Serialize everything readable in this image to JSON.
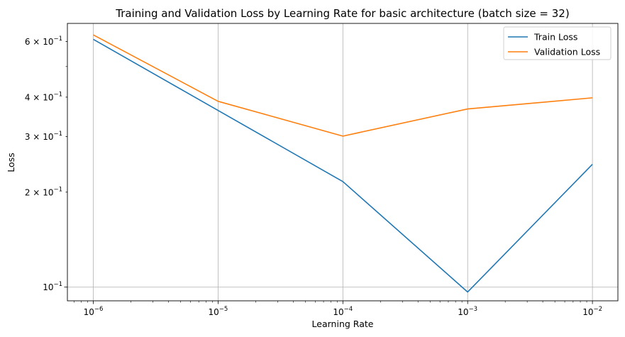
{
  "chart_data": {
    "type": "line",
    "title": "Training and Validation Loss by Learning Rate for basic architecture (batch size = 32)",
    "xlabel": "Learning Rate",
    "ylabel": "Loss",
    "xscale": "log",
    "yscale": "log",
    "x": [
      1e-06,
      1e-05,
      0.0001,
      0.001,
      0.01
    ],
    "xlim": [
      6.2e-07,
      0.016
    ],
    "ylim": [
      0.0905,
      0.685
    ],
    "x_ticks": [
      {
        "value": 1e-06,
        "base": "10",
        "exp": "−6"
      },
      {
        "value": 1e-05,
        "base": "10",
        "exp": "−5"
      },
      {
        "value": 0.0001,
        "base": "10",
        "exp": "−4"
      },
      {
        "value": 0.001,
        "base": "10",
        "exp": "−3"
      },
      {
        "value": 0.01,
        "base": "10",
        "exp": "−2"
      }
    ],
    "y_ticks": [
      {
        "value": 0.1,
        "mantissa": "",
        "base": "10",
        "exp": "−1"
      },
      {
        "value": 0.2,
        "mantissa": "2 × ",
        "base": "10",
        "exp": "−1"
      },
      {
        "value": 0.3,
        "mantissa": "3 × ",
        "base": "10",
        "exp": "−1"
      },
      {
        "value": 0.4,
        "mantissa": "4 × ",
        "base": "10",
        "exp": "−1"
      },
      {
        "value": 0.6,
        "mantissa": "6 × ",
        "base": "10",
        "exp": "−1"
      }
    ],
    "grid": true,
    "legend": "top-right",
    "series": [
      {
        "name": "Train Loss",
        "color": "#1f77b4",
        "values": [
          0.61,
          0.363,
          0.216,
          0.0965,
          0.245
        ]
      },
      {
        "name": "Validation Loss",
        "color": "#ff7f0e",
        "values": [
          0.63,
          0.388,
          0.301,
          0.367,
          0.398
        ]
      }
    ]
  }
}
